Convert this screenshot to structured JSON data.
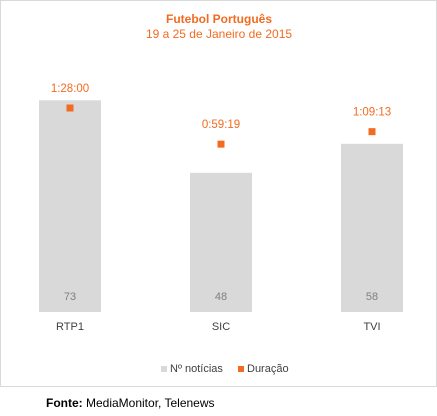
{
  "colors": {
    "title": "#f26b21",
    "bar": "#d9d9d9",
    "marker": "#f26b21",
    "bar_label": "#7f7f7f",
    "axis_label": "#404040",
    "legend_text": "#404040"
  },
  "chart_data": {
    "type": "bar",
    "title": "Futebol Português",
    "subtitle": "19 a 25 de Janeiro de 2015",
    "categories": [
      "RTP1",
      "SIC",
      "TVI"
    ],
    "series": [
      {
        "name": "Nº notícias",
        "kind": "bar",
        "values": [
          73,
          48,
          58
        ]
      },
      {
        "name": "Duração",
        "kind": "marker",
        "values_minutes": [
          88.0,
          59.32,
          69.22
        ],
        "labels": [
          "1:28:00",
          "0:59:19",
          "1:09:13"
        ]
      }
    ],
    "ylim": [
      0,
      80
    ],
    "grid": false,
    "legend_position": "bottom"
  },
  "source": {
    "label": "Fonte:",
    "text": " MediaMonitor, Telenews"
  }
}
